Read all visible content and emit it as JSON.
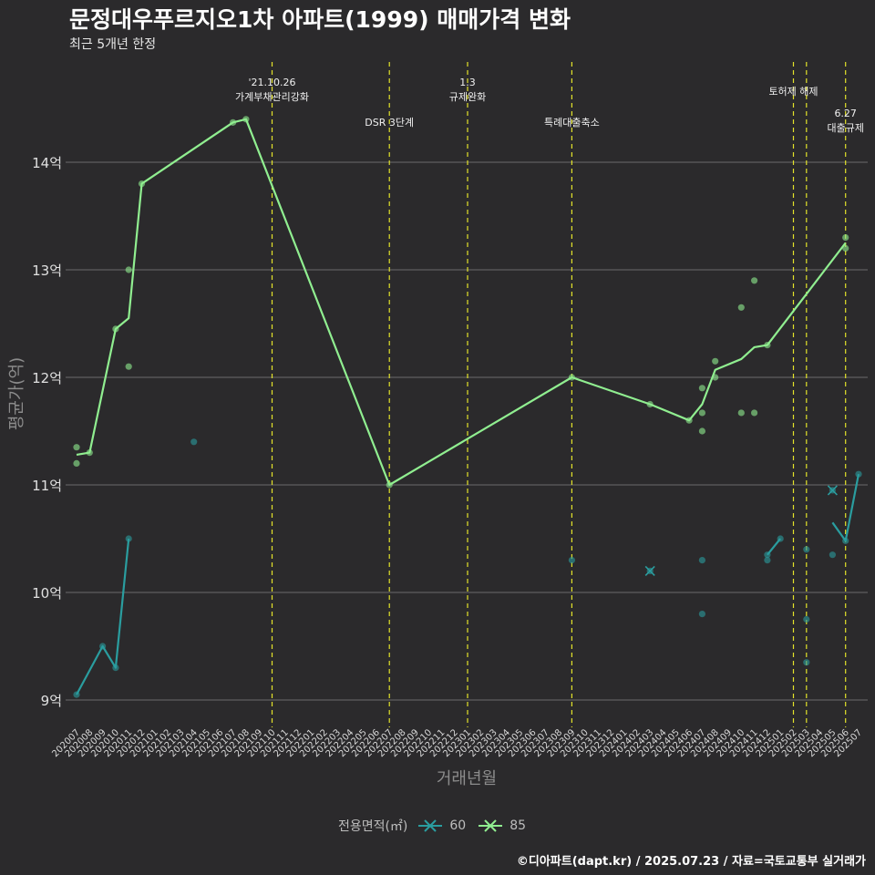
{
  "title": "문정대우푸르지오1차 아파트(1999) 매매가격 변화",
  "subtitle": "최근 5개년 한정",
  "caption": "©디아파트(dapt.kr) / 2025.07.23 / 자료=국토교통부 실거래가",
  "legend": {
    "title": "전용면적(㎡)",
    "items": [
      {
        "label": "60",
        "color": "#2a9d9f"
      },
      {
        "label": "85",
        "color": "#90ee90"
      }
    ]
  },
  "chart_data": {
    "type": "line",
    "xlabel": "거래년월",
    "ylabel": "평균가(억)",
    "ylim": [
      8.85,
      14.9
    ],
    "yticks": [
      9,
      10,
      11,
      12,
      13,
      14
    ],
    "ytick_labels": [
      "9억",
      "10억",
      "11억",
      "12억",
      "13억",
      "14억"
    ],
    "grid": true,
    "legend_position": "bottom",
    "categories": [
      "202007",
      "202008",
      "202009",
      "202010",
      "202011",
      "202012",
      "202101",
      "202102",
      "202103",
      "202104",
      "202105",
      "202106",
      "202107",
      "202108",
      "202109",
      "202110",
      "202111",
      "202112",
      "202201",
      "202202",
      "202203",
      "202204",
      "202205",
      "202206",
      "202207",
      "202208",
      "202209",
      "202210",
      "202211",
      "202212",
      "202301",
      "202302",
      "202303",
      "202304",
      "202305",
      "202306",
      "202307",
      "202308",
      "202309",
      "202310",
      "202311",
      "202312",
      "202401",
      "202402",
      "202403",
      "202404",
      "202405",
      "202406",
      "202407",
      "202408",
      "202409",
      "202410",
      "202411",
      "202412",
      "202501",
      "202502",
      "202503",
      "202504",
      "202505",
      "202506",
      "202507"
    ],
    "series": [
      {
        "name": "60",
        "color": "#2a9d9f",
        "line_segments": [
          [
            [
              "202007",
              9.05
            ],
            [
              "202009",
              9.5
            ],
            [
              "202010",
              9.3
            ],
            [
              "202011",
              10.5
            ]
          ],
          [
            [
              "202412",
              10.35
            ],
            [
              "202501",
              10.5
            ]
          ],
          [
            [
              "202505",
              10.65
            ],
            [
              "202506",
              10.48
            ],
            [
              "202507",
              11.1
            ]
          ]
        ],
        "points": [
          [
            "202007",
            9.05
          ],
          [
            "202009",
            9.5
          ],
          [
            "202010",
            9.3
          ],
          [
            "202011",
            10.5
          ],
          [
            "202104",
            11.4
          ],
          [
            "202309",
            10.3
          ],
          [
            "202403",
            10.2
          ],
          [
            "202407",
            10.3
          ],
          [
            "202407",
            9.8
          ],
          [
            "202412",
            10.3
          ],
          [
            "202412",
            10.35
          ],
          [
            "202501",
            10.5
          ],
          [
            "202503",
            10.4
          ],
          [
            "202503",
            9.75
          ],
          [
            "202503",
            9.35
          ],
          [
            "202505",
            10.35
          ],
          [
            "202505",
            10.95
          ],
          [
            "202506",
            10.48
          ],
          [
            "202507",
            11.1
          ]
        ],
        "x_markers": [
          [
            "202403",
            10.2
          ],
          [
            "202505",
            10.95
          ]
        ]
      },
      {
        "name": "85",
        "color": "#90ee90",
        "line_segments": [
          [
            [
              "202007",
              11.28
            ],
            [
              "202008",
              11.3
            ],
            [
              "202010",
              12.45
            ],
            [
              "202011",
              12.55
            ],
            [
              "202012",
              13.8
            ],
            [
              "202107",
              14.37
            ],
            [
              "202108",
              14.4
            ],
            [
              "202207",
              11.0
            ],
            [
              "202309",
              12.0
            ],
            [
              "202403",
              11.75
            ],
            [
              "202406",
              11.6
            ],
            [
              "202407",
              11.75
            ],
            [
              "202408",
              12.07
            ],
            [
              "202410",
              12.17
            ],
            [
              "202411",
              12.28
            ],
            [
              "202412",
              12.3
            ],
            [
              "202506",
              13.25
            ]
          ]
        ],
        "points": [
          [
            "202007",
            11.35
          ],
          [
            "202007",
            11.2
          ],
          [
            "202008",
            11.3
          ],
          [
            "202010",
            12.45
          ],
          [
            "202011",
            13.0
          ],
          [
            "202011",
            12.1
          ],
          [
            "202012",
            13.8
          ],
          [
            "202107",
            14.37
          ],
          [
            "202108",
            14.4
          ],
          [
            "202207",
            11.0
          ],
          [
            "202309",
            12.0
          ],
          [
            "202403",
            11.75
          ],
          [
            "202406",
            11.6
          ],
          [
            "202407",
            11.9
          ],
          [
            "202407",
            11.67
          ],
          [
            "202407",
            11.5
          ],
          [
            "202408",
            12.15
          ],
          [
            "202408",
            12.0
          ],
          [
            "202410",
            12.65
          ],
          [
            "202410",
            11.67
          ],
          [
            "202411",
            12.9
          ],
          [
            "202411",
            11.67
          ],
          [
            "202412",
            12.3
          ],
          [
            "202506",
            13.3
          ],
          [
            "202506",
            13.2
          ]
        ],
        "x_markers": []
      }
    ],
    "annotations": [
      {
        "x": "202110",
        "lines": [
          "'21.10.26",
          "가계부채관리강화"
        ],
        "level": "top"
      },
      {
        "x": "202207",
        "lines": [
          "DSR 3단계"
        ],
        "level": "low"
      },
      {
        "x": "202301",
        "lines": [
          "1.3",
          "규제완화"
        ],
        "level": "top"
      },
      {
        "x": "202309",
        "lines": [
          "특례대출축소"
        ],
        "level": "low"
      },
      {
        "x": "202502",
        "lines": [
          "토허제 해제"
        ],
        "level": "mid"
      },
      {
        "x": "202503",
        "lines": [],
        "level": "none"
      },
      {
        "x": "202506",
        "lines": [
          "6.27",
          "대출규제"
        ],
        "level": "low2"
      }
    ]
  }
}
